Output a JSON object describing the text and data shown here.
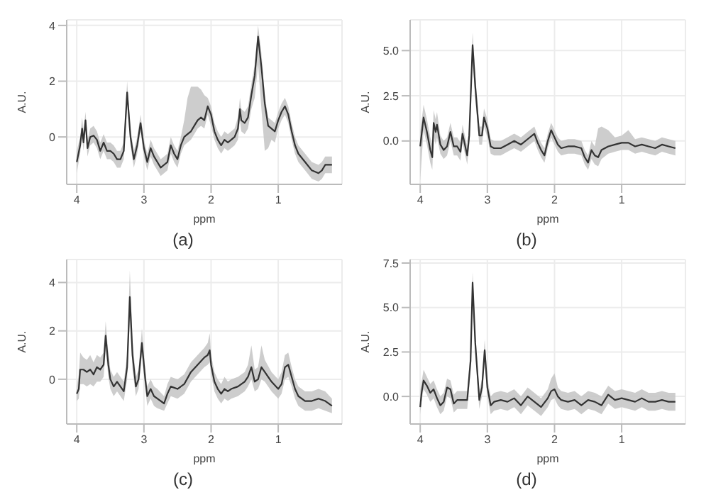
{
  "chart_data": [
    {
      "type": "line",
      "title": "(a)",
      "xlabel": "ppm",
      "ylabel": "A.U.",
      "xlim": [
        4.15,
        0.05
      ],
      "xticks": [
        4,
        3,
        2,
        1
      ],
      "ylim": [
        -1.7,
        4.2
      ],
      "yticks": [
        0,
        2,
        4
      ],
      "grid": true,
      "marker": "none",
      "line_style": "solid",
      "x": [
        4.0,
        3.95,
        3.92,
        3.9,
        3.87,
        3.84,
        3.8,
        3.75,
        3.7,
        3.65,
        3.6,
        3.55,
        3.5,
        3.45,
        3.4,
        3.35,
        3.3,
        3.25,
        3.2,
        3.15,
        3.1,
        3.05,
        3.0,
        2.95,
        2.9,
        2.85,
        2.8,
        2.75,
        2.7,
        2.65,
        2.6,
        2.55,
        2.5,
        2.45,
        2.4,
        2.35,
        2.3,
        2.25,
        2.2,
        2.15,
        2.1,
        2.05,
        2.0,
        1.95,
        1.9,
        1.85,
        1.8,
        1.75,
        1.7,
        1.65,
        1.6,
        1.57,
        1.55,
        1.5,
        1.45,
        1.4,
        1.35,
        1.3,
        1.25,
        1.2,
        1.15,
        1.1,
        1.05,
        1.0,
        0.95,
        0.9,
        0.85,
        0.8,
        0.75,
        0.7,
        0.6,
        0.5,
        0.4,
        0.35,
        0.3,
        0.2
      ],
      "series": [
        {
          "color": "#333333",
          "values": [
            -0.9,
            -0.3,
            0.3,
            -0.2,
            0.6,
            -0.4,
            0.0,
            0.05,
            -0.1,
            -0.5,
            -0.2,
            -0.5,
            -0.5,
            -0.6,
            -0.8,
            -0.8,
            -0.5,
            1.6,
            0.0,
            -0.8,
            -0.3,
            0.5,
            -0.4,
            -0.9,
            -0.4,
            -0.7,
            -0.9,
            -1.1,
            -1.0,
            -0.9,
            -0.3,
            -0.6,
            -0.8,
            -0.3,
            0.0,
            0.1,
            0.2,
            0.4,
            0.6,
            0.7,
            0.6,
            1.1,
            0.8,
            0.2,
            -0.1,
            -0.3,
            -0.1,
            -0.2,
            -0.1,
            0.0,
            0.3,
            1.0,
            0.6,
            0.5,
            0.7,
            1.5,
            2.2,
            3.6,
            2.5,
            1.2,
            0.4,
            0.3,
            0.2,
            0.6,
            0.9,
            1.1,
            0.8,
            0.2,
            -0.3,
            -0.6,
            -0.9,
            -1.2,
            -1.3,
            -1.2,
            -1.0,
            -1.0
          ],
          "lower": [
            -1.3,
            -0.6,
            0.0,
            -0.5,
            0.2,
            -0.7,
            -0.3,
            -0.2,
            -0.4,
            -0.8,
            -0.5,
            -0.8,
            -0.8,
            -0.9,
            -1.1,
            -1.1,
            -0.8,
            1.2,
            -0.3,
            -1.1,
            -0.6,
            0.2,
            -0.7,
            -1.2,
            -0.7,
            -1.0,
            -1.2,
            -1.4,
            -1.3,
            -1.2,
            -0.6,
            -0.9,
            -1.1,
            -0.6,
            -0.3,
            -0.2,
            -0.1,
            0.1,
            0.3,
            0.4,
            0.3,
            0.8,
            0.4,
            -0.1,
            -0.4,
            -0.6,
            -0.4,
            -0.5,
            -0.4,
            -0.3,
            -0.1,
            0.6,
            0.2,
            0.1,
            0.3,
            1.0,
            1.4,
            2.6,
            1.0,
            -0.5,
            -0.4,
            -0.1,
            -0.2,
            0.3,
            0.6,
            0.8,
            0.5,
            -0.1,
            -0.6,
            -0.9,
            -1.2,
            -1.5,
            -1.6,
            -1.5,
            -1.3,
            -1.3
          ],
          "upper": [
            -0.5,
            0.0,
            0.7,
            0.2,
            0.9,
            -0.1,
            0.3,
            0.4,
            0.2,
            -0.2,
            0.1,
            -0.2,
            -0.2,
            -0.3,
            -0.5,
            -0.5,
            -0.2,
            2.0,
            0.3,
            -0.5,
            0.0,
            0.8,
            -0.1,
            -0.6,
            -0.1,
            -0.4,
            -0.6,
            -0.8,
            -0.7,
            -0.6,
            0.0,
            -0.3,
            -0.5,
            0.0,
            0.6,
            1.4,
            1.8,
            1.8,
            1.8,
            1.7,
            1.5,
            1.4,
            1.1,
            0.5,
            0.2,
            0.0,
            0.2,
            0.1,
            0.2,
            0.3,
            0.7,
            1.4,
            1.0,
            0.9,
            1.1,
            1.9,
            2.6,
            4.0,
            3.0,
            1.5,
            0.7,
            0.6,
            0.5,
            0.9,
            1.2,
            1.4,
            1.1,
            0.5,
            0.0,
            -0.3,
            -0.6,
            -0.9,
            -1.0,
            -0.9,
            -0.7,
            -0.7
          ]
        }
      ]
    },
    {
      "type": "line",
      "title": "(b)",
      "xlabel": "ppm",
      "ylabel": "A.U.",
      "xlim": [
        4.15,
        0.05
      ],
      "xticks": [
        4,
        3,
        2,
        1
      ],
      "ylim": [
        -2.4,
        6.7
      ],
      "yticks": [
        {
          "value": 0,
          "label": "0.0"
        },
        {
          "value": 2.5,
          "label": "2.5"
        },
        {
          "value": 5,
          "label": "5.0"
        }
      ],
      "grid": true,
      "marker": "none",
      "line_style": "solid",
      "x": [
        4.0,
        3.95,
        3.9,
        3.85,
        3.82,
        3.8,
        3.77,
        3.75,
        3.7,
        3.65,
        3.6,
        3.55,
        3.5,
        3.45,
        3.4,
        3.37,
        3.3,
        3.27,
        3.22,
        3.18,
        3.12,
        3.08,
        3.05,
        3.0,
        2.95,
        2.9,
        2.8,
        2.7,
        2.6,
        2.5,
        2.4,
        2.3,
        2.25,
        2.2,
        2.15,
        2.1,
        2.05,
        2.0,
        1.95,
        1.9,
        1.8,
        1.7,
        1.6,
        1.55,
        1.5,
        1.45,
        1.4,
        1.35,
        1.3,
        1.2,
        1.1,
        1.0,
        0.9,
        0.8,
        0.7,
        0.6,
        0.5,
        0.4,
        0.3,
        0.2
      ],
      "series": [
        {
          "color": "#333333",
          "values": [
            -0.3,
            1.3,
            0.5,
            -0.5,
            -0.9,
            1.0,
            0.5,
            0.9,
            -0.2,
            -0.5,
            -0.3,
            0.5,
            -0.3,
            -0.3,
            -0.6,
            0.4,
            -0.8,
            0.3,
            5.3,
            3.0,
            0.3,
            0.3,
            1.3,
            0.7,
            -0.3,
            -0.4,
            -0.4,
            -0.2,
            0.0,
            -0.2,
            0.1,
            0.4,
            -0.1,
            -0.5,
            -0.8,
            0.0,
            0.6,
            0.2,
            -0.2,
            -0.4,
            -0.3,
            -0.3,
            -0.4,
            -0.9,
            -1.2,
            -0.5,
            -0.8,
            -0.9,
            -0.5,
            -0.3,
            -0.2,
            -0.1,
            -0.1,
            -0.3,
            -0.2,
            -0.3,
            -0.4,
            -0.2,
            -0.3,
            -0.4
          ],
          "lower": [
            -2.2,
            0.6,
            -0.2,
            -1.2,
            -1.6,
            0.3,
            -0.2,
            0.2,
            -0.7,
            -1.0,
            -0.8,
            0.0,
            -0.8,
            -0.8,
            -1.1,
            -0.1,
            -1.3,
            -0.2,
            4.6,
            2.3,
            -0.2,
            -0.2,
            0.8,
            0.2,
            -0.7,
            -0.8,
            -0.8,
            -0.6,
            -0.4,
            -0.6,
            -0.3,
            0.0,
            -0.5,
            -0.9,
            -1.2,
            -0.4,
            0.2,
            -0.2,
            -0.6,
            -0.8,
            -0.7,
            -0.7,
            -0.8,
            -1.3,
            -1.6,
            -1.0,
            -1.3,
            -1.4,
            -1.0,
            -0.7,
            -0.6,
            -0.5,
            -0.5,
            -0.7,
            -0.6,
            -0.7,
            -0.8,
            -0.6,
            -0.7,
            -0.8
          ],
          "upper": [
            0.5,
            2.0,
            1.2,
            0.2,
            -0.2,
            1.7,
            1.2,
            1.6,
            0.3,
            0.0,
            0.2,
            1.0,
            0.2,
            0.2,
            -0.1,
            0.9,
            -0.3,
            0.8,
            6.0,
            3.7,
            0.8,
            0.8,
            1.8,
            1.2,
            0.1,
            0.0,
            0.0,
            0.2,
            0.4,
            0.2,
            0.5,
            0.8,
            0.3,
            -0.1,
            -0.4,
            0.4,
            1.0,
            0.6,
            0.2,
            0.0,
            0.1,
            0.1,
            0.0,
            -0.5,
            -0.8,
            0.0,
            -0.3,
            0.7,
            0.8,
            0.6,
            0.2,
            0.3,
            0.6,
            0.1,
            0.2,
            0.1,
            0.0,
            0.2,
            0.1,
            0.0
          ]
        }
      ]
    },
    {
      "type": "line",
      "title": "(c)",
      "xlabel": "ppm",
      "ylabel": "A.U.",
      "xlim": [
        4.15,
        0.05
      ],
      "xticks": [
        4,
        3,
        2,
        1
      ],
      "ylim": [
        -1.85,
        4.95
      ],
      "yticks": [
        0,
        2,
        4
      ],
      "grid": true,
      "marker": "none",
      "line_style": "solid",
      "x": [
        4.0,
        3.97,
        3.95,
        3.9,
        3.85,
        3.8,
        3.75,
        3.7,
        3.65,
        3.6,
        3.57,
        3.53,
        3.5,
        3.45,
        3.4,
        3.35,
        3.3,
        3.25,
        3.21,
        3.17,
        3.12,
        3.08,
        3.03,
        2.98,
        2.95,
        2.9,
        2.85,
        2.8,
        2.7,
        2.65,
        2.6,
        2.5,
        2.4,
        2.3,
        2.2,
        2.1,
        2.05,
        2.02,
        2.0,
        1.95,
        1.9,
        1.85,
        1.8,
        1.75,
        1.7,
        1.6,
        1.5,
        1.45,
        1.4,
        1.35,
        1.3,
        1.25,
        1.2,
        1.1,
        1.0,
        0.95,
        0.9,
        0.85,
        0.8,
        0.75,
        0.7,
        0.6,
        0.5,
        0.4,
        0.3,
        0.2
      ],
      "series": [
        {
          "color": "#333333",
          "values": [
            -0.6,
            -0.4,
            0.4,
            0.4,
            0.3,
            0.4,
            0.2,
            0.5,
            0.4,
            0.6,
            1.8,
            0.6,
            0.0,
            -0.3,
            -0.1,
            -0.3,
            -0.5,
            0.5,
            3.4,
            1.0,
            -0.3,
            0.0,
            1.5,
            0.0,
            -0.7,
            -0.4,
            -0.7,
            -0.8,
            -1.0,
            -0.6,
            -0.3,
            -0.4,
            -0.2,
            0.3,
            0.6,
            0.9,
            1.0,
            1.2,
            0.6,
            -0.1,
            -0.4,
            -0.6,
            -0.4,
            -0.5,
            -0.4,
            -0.3,
            -0.1,
            0.1,
            0.5,
            -0.1,
            0.0,
            0.5,
            0.3,
            -0.1,
            -0.4,
            -0.2,
            0.5,
            0.6,
            0.1,
            -0.4,
            -0.7,
            -0.9,
            -0.9,
            -0.8,
            -0.9,
            -1.1
          ],
          "lower": [
            -0.9,
            -0.8,
            -0.2,
            -0.2,
            -0.3,
            -0.2,
            -0.3,
            -0.1,
            -0.1,
            0.1,
            1.2,
            0.1,
            -0.4,
            -0.7,
            -0.5,
            -0.7,
            -0.9,
            0.0,
            2.6,
            0.4,
            -0.7,
            -0.4,
            1.0,
            -0.4,
            -1.1,
            -0.8,
            -1.1,
            -1.2,
            -1.3,
            -1.0,
            -0.7,
            -0.8,
            -0.6,
            -0.1,
            0.2,
            0.5,
            0.6,
            0.7,
            0.2,
            -0.5,
            -0.8,
            -1.0,
            -0.8,
            -0.9,
            -0.8,
            -0.7,
            -0.5,
            -0.3,
            0.0,
            -0.5,
            -0.4,
            0.0,
            -0.1,
            -0.5,
            -0.8,
            -0.6,
            0.0,
            0.1,
            -0.3,
            -0.8,
            -1.1,
            -1.3,
            -1.3,
            -1.2,
            -1.3,
            -1.4
          ],
          "upper": [
            -0.3,
            0.2,
            1.1,
            0.9,
            0.8,
            1.0,
            0.7,
            1.0,
            0.9,
            1.1,
            2.4,
            1.1,
            0.4,
            0.1,
            0.3,
            0.1,
            -0.1,
            1.0,
            4.5,
            1.6,
            0.1,
            0.4,
            2.1,
            0.4,
            -0.3,
            0.0,
            -0.3,
            -0.4,
            -0.7,
            -0.2,
            0.1,
            0.0,
            0.2,
            0.7,
            1.0,
            1.3,
            1.5,
            1.9,
            1.0,
            0.3,
            0.0,
            -0.2,
            0.1,
            -0.1,
            0.0,
            0.1,
            0.3,
            0.6,
            1.4,
            0.4,
            0.5,
            1.4,
            0.8,
            0.3,
            0.0,
            0.3,
            1.0,
            1.1,
            0.5,
            0.0,
            -0.3,
            -0.5,
            -0.5,
            -0.4,
            -0.5,
            -0.8
          ]
        }
      ]
    },
    {
      "type": "line",
      "title": "(d)",
      "xlabel": "ppm",
      "ylabel": "A.U.",
      "xlim": [
        4.15,
        0.05
      ],
      "xticks": [
        4,
        3,
        2,
        1
      ],
      "ylim": [
        -1.55,
        7.7
      ],
      "yticks": [
        {
          "value": 0,
          "label": "0.0"
        },
        {
          "value": 2.5,
          "label": "2.5"
        },
        {
          "value": 5,
          "label": "5.0"
        },
        {
          "value": 7.5,
          "label": "7.5"
        }
      ],
      "grid": true,
      "marker": "none",
      "line_style": "solid",
      "x": [
        4.0,
        3.98,
        3.95,
        3.9,
        3.85,
        3.8,
        3.75,
        3.7,
        3.65,
        3.6,
        3.55,
        3.5,
        3.45,
        3.4,
        3.3,
        3.25,
        3.22,
        3.18,
        3.12,
        3.08,
        3.04,
        3.0,
        2.95,
        2.9,
        2.8,
        2.7,
        2.6,
        2.5,
        2.4,
        2.3,
        2.2,
        2.1,
        2.05,
        2.0,
        1.95,
        1.9,
        1.8,
        1.7,
        1.6,
        1.5,
        1.4,
        1.3,
        1.2,
        1.1,
        1.0,
        0.9,
        0.8,
        0.7,
        0.6,
        0.5,
        0.4,
        0.3,
        0.2
      ],
      "series": [
        {
          "color": "#333333",
          "values": [
            -0.6,
            0.2,
            0.9,
            0.6,
            0.2,
            0.4,
            -0.1,
            -0.5,
            -0.3,
            0.5,
            0.4,
            -0.4,
            -0.2,
            -0.2,
            -0.2,
            2.0,
            6.4,
            3.0,
            -0.2,
            0.5,
            2.6,
            0.5,
            -0.5,
            -0.3,
            -0.2,
            -0.3,
            -0.1,
            -0.5,
            0.0,
            -0.3,
            -0.6,
            -0.1,
            0.3,
            0.4,
            0.0,
            -0.2,
            -0.3,
            -0.2,
            -0.5,
            -0.2,
            -0.3,
            -0.5,
            0.1,
            -0.2,
            -0.1,
            -0.2,
            -0.3,
            -0.1,
            -0.3,
            -0.3,
            -0.2,
            -0.3,
            -0.3
          ],
          "lower": [
            -1.0,
            -0.3,
            0.4,
            0.1,
            -0.3,
            -0.1,
            -0.6,
            -1.0,
            -0.8,
            0.0,
            -0.1,
            -0.9,
            -0.7,
            -0.7,
            -0.7,
            1.4,
            5.7,
            2.4,
            -0.7,
            0.0,
            2.0,
            0.0,
            -1.0,
            -0.8,
            -0.7,
            -0.8,
            -0.6,
            -1.0,
            -0.5,
            -0.8,
            -1.1,
            -0.6,
            -0.2,
            -0.1,
            -0.5,
            -0.7,
            -0.8,
            -0.7,
            -1.0,
            -0.7,
            -0.8,
            -1.0,
            -0.4,
            -0.7,
            -0.6,
            -0.7,
            -0.8,
            -0.6,
            -0.8,
            -0.8,
            -0.7,
            -0.8,
            -0.8
          ],
          "upper": [
            0.3,
            0.8,
            1.5,
            1.1,
            0.7,
            0.9,
            0.4,
            0.0,
            0.2,
            1.0,
            0.9,
            0.1,
            0.3,
            0.3,
            0.3,
            2.6,
            7.0,
            3.6,
            0.3,
            1.0,
            3.2,
            1.0,
            0.0,
            0.2,
            0.3,
            0.2,
            0.4,
            0.0,
            0.5,
            0.2,
            -0.1,
            0.4,
            1.0,
            1.3,
            0.5,
            0.3,
            0.2,
            0.3,
            0.0,
            0.3,
            0.2,
            0.0,
            0.6,
            0.3,
            0.4,
            0.3,
            0.2,
            0.4,
            0.2,
            0.2,
            0.3,
            0.2,
            0.2
          ]
        }
      ]
    }
  ]
}
